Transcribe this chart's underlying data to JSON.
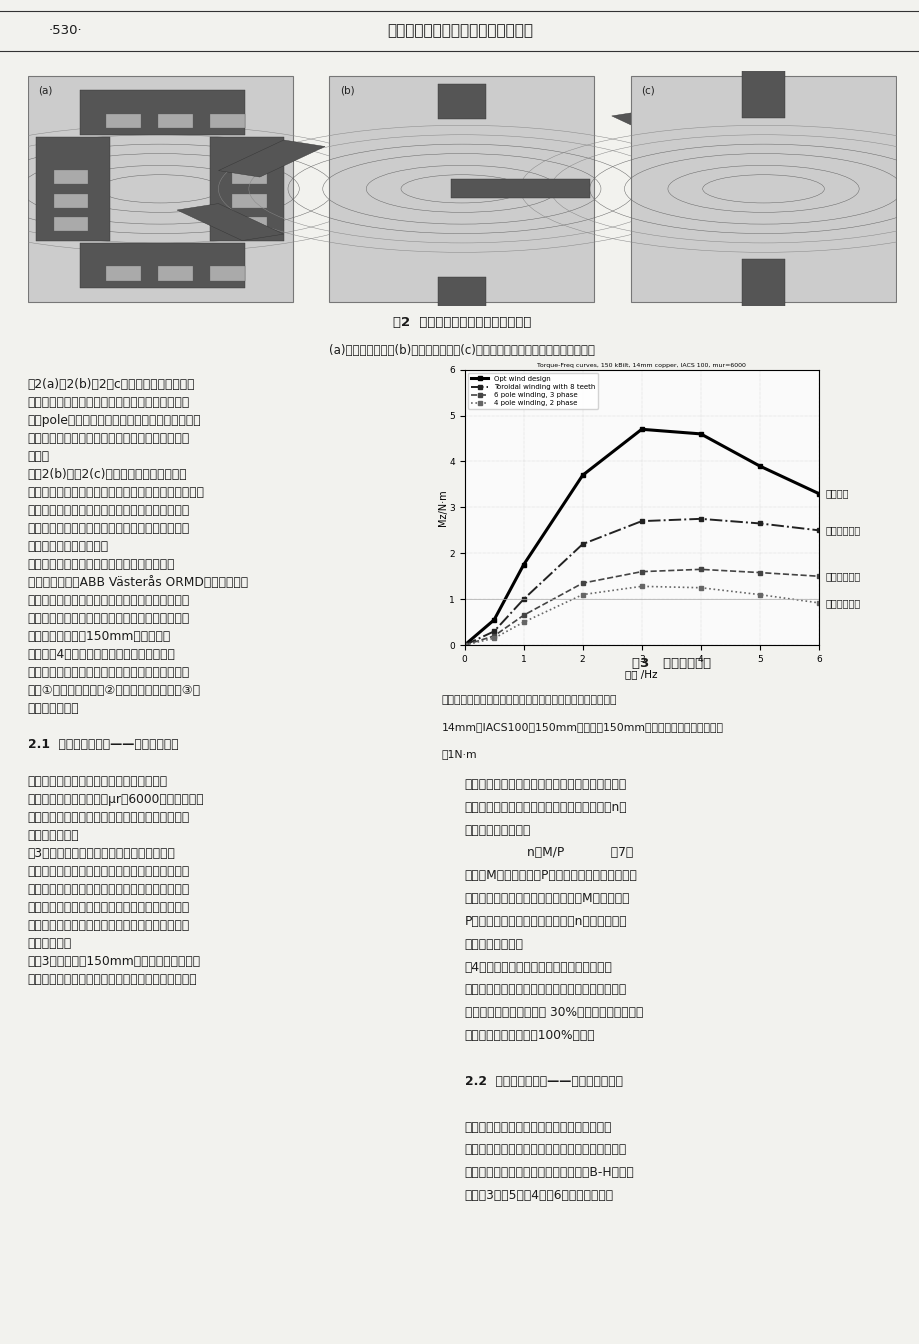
{
  "page_number": "·530·",
  "header_title": "第三届发展中国家连铸国际会议文集",
  "fig2_caption_main": "图2  三种常见的方坏搔拌器绕组位型",
  "fig2_caption_sub": "(a)两相磁极绕组；(b)三相磁极绕组；(c)三相环形绕组；环形绕组有时不带磁齿",
  "fig3_caption_main": "图3   搔拌力矩比较",
  "fig3_caption_sub_1": "线性模型结果，横轴是频率，纵轴是搔拌力矩，结晶器铜管壁",
  "fig3_caption_sub_2": "14mm，IACS100，150mm方坏，对150mm方坏来说，搔拌力矩的判据",
  "fig3_caption_sub_3": "是1N·m",
  "fig3_title": "Torque-Freq curves, 150 kBilt, 14mm copper, IACS 100, mur=6000",
  "chart_xlim": [
    0,
    6
  ],
  "chart_ylim": [
    0,
    6
  ],
  "chart_xlabel": "频率 /Hz",
  "chart_ylabel": "Mz/N·m",
  "chart_xticks": [
    0,
    1,
    2,
    3,
    4,
    5,
    6
  ],
  "chart_yticks": [
    0,
    1,
    2,
    3,
    4,
    5,
    6
  ],
  "line1_label": "优化设计",
  "line1_legend": "Opt wind design",
  "line1_x": [
    0,
    0.5,
    1,
    2,
    3,
    4,
    5,
    6
  ],
  "line1_y": [
    0,
    0.55,
    1.75,
    3.7,
    4.7,
    4.6,
    3.9,
    3.3
  ],
  "line2_label": "三相环形绕组",
  "line2_legend": "Toroidal winding with 8 teeth",
  "line2_x": [
    0,
    0.5,
    1,
    2,
    3,
    4,
    5,
    6
  ],
  "line2_y": [
    0,
    0.3,
    1.0,
    2.2,
    2.7,
    2.75,
    2.65,
    2.5
  ],
  "line3_label": "三相磁极绕组",
  "line3_legend": "6 pole winding, 3 phase",
  "line3_x": [
    0,
    0.5,
    1,
    2,
    3,
    4,
    5,
    6
  ],
  "line3_y": [
    0,
    0.2,
    0.65,
    1.35,
    1.6,
    1.65,
    1.58,
    1.5
  ],
  "line4_label": "两相磁极绕组",
  "line4_legend": "4 pole winding, 2 phase",
  "line4_x": [
    0,
    0.5,
    1,
    2,
    3,
    4,
    5,
    6
  ],
  "line4_y": [
    0,
    0.15,
    0.5,
    1.1,
    1.28,
    1.25,
    1.1,
    0.92
  ],
  "left_col_lines": [
    "图2(a)、2(b)和2（c）列出了三种典型的绕",
    "组方式和磁铁位型。磁极绕组的特点是线圈绕在磁",
    "极（pole）上。这和早期的电机设计相似。另一种",
    "常见的设计是环形绕组，特点是线圈绕在环形的铁",
    "芝上。",
    "在图2(b)和图2(c)中，笔者有意识地把三相",
    "磁极绕组和三相环形绕组的结构取得完全相同。所以，",
    "笔者可以认为在环绕组是把线圈改绕在磁极绕组的",
    "磁轭上而得来的。这样可以比较绕组的方式的作用",
    "而剤除其他因素的影响。",
    "目前，所有的内装式搔拌器都无例外的采用了",
    "磁极绕组。除了ABB Västerås ORMD外，大部分的",
    "外装式搔拌器也采用了磁极绕组。因此，比较不同",
    "方式的绕组对搔拌器的设计有现实的指导意义。在",
    "本节中，笔者考虑150mm的小方坏。",
    "笔者比较4种位型：两相磁极绕组，三相磁极",
    "绕组，三相环形绕组和笔者新的优化设计。比较条",
    "件是①相同的安匭数；②相同的结晶器铜管；③相",
    "同的磁轭高度。"
  ],
  "section_21": "2.1  搔拌力矩的比较——线性模型结果",
  "sec21_lines": [
    "在这节中，笔者应用线性模型来计算搔拌力",
    "矩。采用的相对导磁率为μr＝6000，大约是硬锤",
    "的线性磁导率。这是一种理想的状况，磁铁的饱和",
    "没有考虑在内。",
    "图3列出了四种位型的搔拌力矩比较。可以看",
    "出，在相同安匭数的条件下，搔拌力矩的排列是：",
    "三相环形绕组，三相磁极绕组，两相磁极绕组。优",
    "化设计是在三相环形绕组的基础上进一步改进而成",
    "的。优化设计的搔拌力矩比常规的三相磁极绕组高",
    "出一倍左右。",
    "从图3中看到，对150mm方坏来说，三相磁极",
    "绕组的搔拌力矩稍优于两相磁极绕组，但相差无几。"
  ],
  "right_col_lines": [
    "但是，考虑到两相绕组的线圈要少两个，所消耗的",
    "电能也少一些。因此，笔者引进搔拌能量效率n以",
    "消除功率消耗的影响",
    "                n＝M/P            （7）",
    "式中，M是搔拌力矩，P是搔拌功率，包括除电源能",
    "耗以外的所有有功功率。因为搔拌力M和搔拌功率",
    "P都和电流成平方比例，搔拌能效n在不饱和的情",
    "况下和电流无关。",
    "图4显示了四种位型的线性搔拌能效，在磁铁",
    "不饱和的情况下，就最佳搔拌能效而言，三相环形",
    "绕组要比三相磁极绕组高 30%，而经过优化的设计",
    "可以比三相磁极绕组高100%左右。"
  ],
  "section_22": "2.2  搔拌力矩的比较——非线性模型结果",
  "sec22_lines": [
    "线性模型假定的条件，即磁铁不饱和与现实情",
    "况相差很大。磁铁的饱和是搔拌器设计中的一个重",
    "要因素。在这节笔者采用一般的碳锤的B-H曲线。",
    "比较图3和图5，图4和图6注意到，由于磁"
  ],
  "bg_color": "#f2f2ee",
  "text_color": "#1a1a1a",
  "line_color": "#555555"
}
